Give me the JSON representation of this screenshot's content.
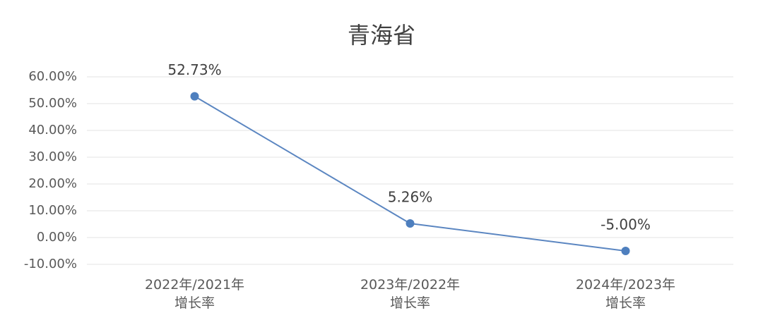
{
  "chart_data": {
    "type": "line",
    "title": "青海省",
    "categories": [
      "2022年/2021年\n增长率",
      "2023年/2022年\n增长率",
      "2024年/2023年\n增长率"
    ],
    "series": [
      {
        "name": "增长率",
        "color": "#5b86c1",
        "values": [
          52.73,
          5.26,
          -5.0
        ],
        "value_labels": [
          "52.73%",
          "5.26%",
          "-5.00%"
        ]
      }
    ],
    "ylim": [
      -10,
      60
    ],
    "yticks": [
      {
        "value": -10,
        "label": "-10.00%"
      },
      {
        "value": 0,
        "label": "0.00%"
      },
      {
        "value": 10,
        "label": "10.00%"
      },
      {
        "value": 20,
        "label": "20.00%"
      },
      {
        "value": 30,
        "label": "30.00%"
      },
      {
        "value": 40,
        "label": "40.00%"
      },
      {
        "value": 50,
        "label": "50.00%"
      },
      {
        "value": 60,
        "label": "60.00%"
      }
    ],
    "grid": true,
    "legend": false
  }
}
